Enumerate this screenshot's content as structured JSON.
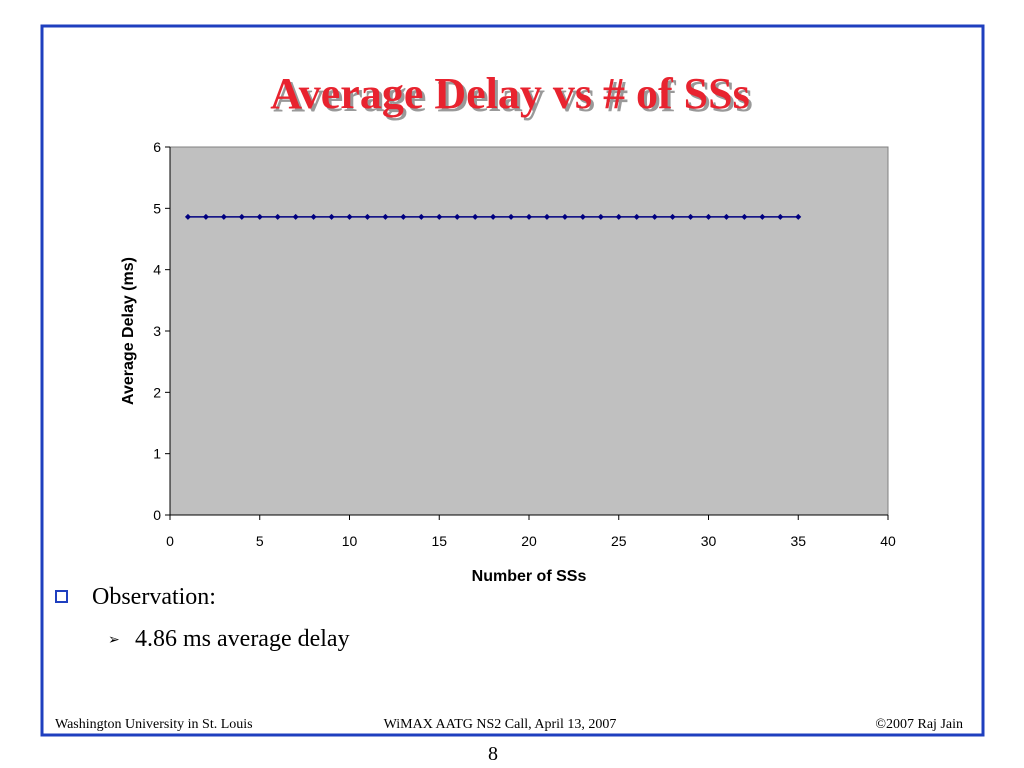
{
  "slide": {
    "title": "Average Delay vs # of SSs",
    "bullets": [
      {
        "text": "Observation:",
        "sub": [
          "4.86 ms average delay"
        ]
      }
    ],
    "footer": {
      "left": "Washington University in St. Louis",
      "center": "WiMAX AATG NS2 Call, April 13, 2007",
      "right": "©2007 Raj Jain"
    },
    "page_number": "8"
  },
  "chart_data": {
    "type": "line",
    "x_label": "Number of SSs",
    "y_label": "Average Delay (ms)",
    "x": [
      1,
      2,
      3,
      4,
      5,
      6,
      7,
      8,
      9,
      10,
      11,
      12,
      13,
      14,
      15,
      16,
      17,
      18,
      19,
      20,
      21,
      22,
      23,
      24,
      25,
      26,
      27,
      28,
      29,
      30,
      31,
      32,
      33,
      34,
      35
    ],
    "series": [
      {
        "color": "#000080",
        "values": [
          4.86,
          4.86,
          4.86,
          4.86,
          4.86,
          4.86,
          4.86,
          4.86,
          4.86,
          4.86,
          4.86,
          4.86,
          4.86,
          4.86,
          4.86,
          4.86,
          4.86,
          4.86,
          4.86,
          4.86,
          4.86,
          4.86,
          4.86,
          4.86,
          4.86,
          4.86,
          4.86,
          4.86,
          4.86,
          4.86,
          4.86,
          4.86,
          4.86,
          4.86,
          4.86
        ]
      }
    ],
    "xlim": [
      0,
      40
    ],
    "ylim": [
      0,
      6
    ],
    "xticks": [
      0,
      5,
      10,
      15,
      20,
      25,
      30,
      35,
      40
    ],
    "yticks": [
      0,
      1,
      2,
      3,
      4,
      5,
      6
    ],
    "plot_background": "#c0c0c0"
  }
}
